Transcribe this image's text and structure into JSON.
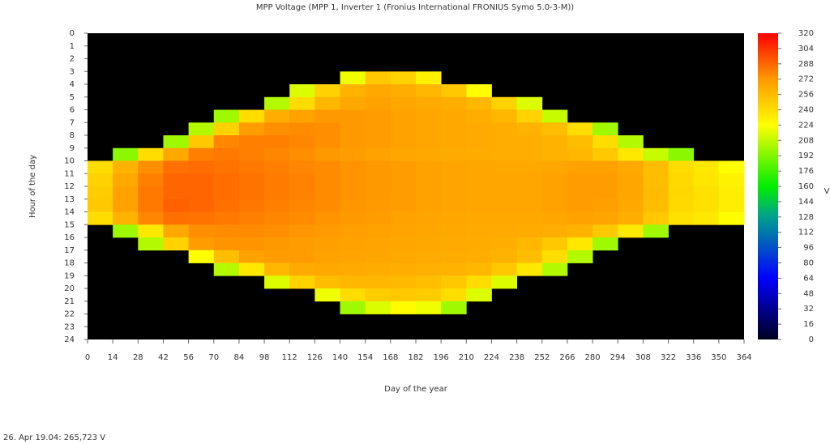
{
  "chart_data": {
    "type": "heatmap",
    "title": "MPP Voltage (MPP 1, Inverter 1 (Fronius International FRONIUS Symo 5.0-3-M))",
    "x_label": "Day of the year",
    "y_label": "Hour of the day",
    "colorbar_label": "V",
    "status": "26. Apr 19.04: 265,723 V",
    "xlim": [
      0,
      364
    ],
    "ylim": [
      0,
      24
    ],
    "xbins": [
      0,
      14,
      28,
      42,
      56,
      70,
      84,
      98,
      112,
      126,
      140,
      154,
      168,
      182,
      196,
      210,
      224,
      238,
      252,
      266,
      280,
      294,
      308,
      322,
      336,
      350,
      364
    ],
    "ybins": [
      0,
      1,
      2,
      3,
      4,
      5,
      6,
      7,
      8,
      9,
      10,
      11,
      12,
      13,
      14,
      15,
      16,
      17,
      18,
      19,
      20,
      21,
      22,
      23,
      24
    ],
    "xticks": [
      0,
      14,
      28,
      42,
      56,
      70,
      84,
      98,
      112,
      126,
      140,
      154,
      168,
      182,
      196,
      210,
      224,
      238,
      252,
      266,
      280,
      294,
      308,
      322,
      336,
      350,
      364
    ],
    "yticks": [
      0,
      1,
      2,
      3,
      4,
      5,
      6,
      7,
      8,
      9,
      10,
      11,
      12,
      13,
      14,
      15,
      16,
      17,
      18,
      19,
      20,
      21,
      22,
      23,
      24
    ],
    "zlim": [
      0,
      320
    ],
    "zticks": [
      0,
      16,
      32,
      48,
      64,
      80,
      96,
      112,
      128,
      144,
      160,
      176,
      192,
      208,
      224,
      240,
      256,
      272,
      288,
      304,
      320
    ],
    "colorscale": [
      [
        0,
        "#000020"
      ],
      [
        64,
        "#0000ff"
      ],
      [
        128,
        "#00a090"
      ],
      [
        160,
        "#00ee00"
      ],
      [
        224,
        "#ffff00"
      ],
      [
        272,
        "#ff9900"
      ],
      [
        320,
        "#ff0000"
      ]
    ],
    "background": "#000000",
    "z": [
      [
        null,
        null,
        null,
        null,
        null,
        null,
        null,
        null,
        null,
        null,
        null,
        null,
        null,
        null,
        null,
        null,
        null,
        null,
        null,
        null,
        null,
        null,
        null,
        null,
        null,
        null
      ],
      [
        null,
        null,
        null,
        null,
        null,
        null,
        null,
        null,
        null,
        null,
        null,
        null,
        null,
        null,
        null,
        null,
        null,
        null,
        null,
        null,
        null,
        null,
        null,
        null,
        null,
        null
      ],
      [
        null,
        null,
        null,
        null,
        null,
        null,
        null,
        null,
        null,
        null,
        null,
        null,
        null,
        null,
        null,
        null,
        null,
        null,
        null,
        null,
        null,
        null,
        null,
        null,
        null,
        null
      ],
      [
        null,
        null,
        null,
        null,
        null,
        null,
        null,
        null,
        null,
        null,
        220,
        250,
        245,
        230,
        null,
        null,
        null,
        null,
        null,
        null,
        null,
        null,
        null,
        null,
        null,
        null
      ],
      [
        null,
        null,
        null,
        null,
        null,
        null,
        null,
        null,
        215,
        245,
        260,
        265,
        262,
        258,
        250,
        225,
        null,
        null,
        null,
        null,
        null,
        null,
        null,
        null,
        null,
        null
      ],
      [
        null,
        null,
        null,
        null,
        null,
        null,
        null,
        205,
        240,
        258,
        265,
        268,
        266,
        264,
        262,
        258,
        245,
        215,
        null,
        null,
        null,
        null,
        null,
        null,
        null,
        null
      ],
      [
        null,
        null,
        null,
        null,
        null,
        200,
        240,
        262,
        268,
        272,
        272,
        270,
        268,
        266,
        265,
        262,
        258,
        245,
        210,
        null,
        null,
        null,
        null,
        null,
        null,
        null
      ],
      [
        null,
        null,
        null,
        null,
        205,
        245,
        270,
        275,
        276,
        275,
        272,
        270,
        268,
        266,
        265,
        264,
        262,
        260,
        255,
        240,
        200,
        null,
        null,
        null,
        null,
        null
      ],
      [
        null,
        null,
        null,
        200,
        250,
        278,
        280,
        280,
        278,
        275,
        272,
        270,
        268,
        266,
        265,
        264,
        262,
        262,
        260,
        255,
        240,
        205,
        null,
        null,
        null,
        null
      ],
      [
        null,
        195,
        240,
        265,
        280,
        282,
        280,
        278,
        275,
        272,
        270,
        268,
        266,
        265,
        264,
        263,
        262,
        262,
        260,
        258,
        250,
        235,
        210,
        195,
        null,
        null
      ],
      [
        240,
        260,
        275,
        285,
        286,
        284,
        282,
        280,
        278,
        276,
        274,
        272,
        270,
        268,
        267,
        266,
        265,
        265,
        266,
        268,
        268,
        265,
        255,
        240,
        235,
        225
      ],
      [
        245,
        265,
        280,
        288,
        288,
        286,
        284,
        281,
        279,
        276,
        274,
        272,
        270,
        268,
        267,
        266,
        266,
        266,
        268,
        270,
        270,
        266,
        255,
        242,
        236,
        230
      ],
      [
        248,
        268,
        282,
        288,
        288,
        286,
        284,
        281,
        279,
        276,
        274,
        272,
        270,
        268,
        267,
        266,
        266,
        266,
        268,
        270,
        270,
        266,
        256,
        243,
        238,
        232
      ],
      [
        250,
        268,
        282,
        290,
        288,
        285,
        283,
        280,
        278,
        276,
        273,
        271,
        270,
        268,
        267,
        266,
        266,
        266,
        268,
        270,
        269,
        265,
        255,
        242,
        238,
        232
      ],
      [
        240,
        260,
        278,
        285,
        284,
        282,
        280,
        278,
        276,
        274,
        272,
        270,
        268,
        267,
        266,
        265,
        265,
        265,
        266,
        268,
        267,
        262,
        250,
        238,
        235,
        225
      ],
      [
        null,
        200,
        235,
        265,
        275,
        276,
        276,
        275,
        273,
        271,
        269,
        268,
        267,
        266,
        265,
        264,
        264,
        263,
        262,
        260,
        250,
        235,
        200,
        null,
        null,
        null
      ],
      [
        null,
        null,
        205,
        245,
        270,
        274,
        274,
        272,
        270,
        269,
        268,
        267,
        266,
        265,
        264,
        263,
        262,
        258,
        250,
        235,
        200,
        null,
        null,
        null,
        null,
        null
      ],
      [
        null,
        null,
        null,
        null,
        225,
        255,
        268,
        270,
        270,
        268,
        267,
        266,
        265,
        264,
        263,
        262,
        260,
        255,
        240,
        205,
        null,
        null,
        null,
        null,
        null,
        null
      ],
      [
        null,
        null,
        null,
        null,
        null,
        205,
        235,
        258,
        264,
        265,
        264,
        263,
        262,
        261,
        260,
        258,
        250,
        235,
        205,
        null,
        null,
        null,
        null,
        null,
        null,
        null
      ],
      [
        null,
        null,
        null,
        null,
        null,
        null,
        null,
        215,
        245,
        255,
        258,
        258,
        256,
        254,
        250,
        240,
        215,
        null,
        null,
        null,
        null,
        null,
        null,
        null,
        null,
        null
      ],
      [
        null,
        null,
        null,
        null,
        null,
        null,
        null,
        null,
        null,
        220,
        240,
        248,
        250,
        248,
        240,
        215,
        null,
        null,
        null,
        null,
        null,
        null,
        null,
        null,
        null,
        null
      ],
      [
        null,
        null,
        null,
        null,
        null,
        null,
        null,
        null,
        null,
        null,
        200,
        215,
        225,
        220,
        200,
        null,
        null,
        null,
        null,
        null,
        null,
        null,
        null,
        null,
        null,
        null
      ],
      [
        null,
        null,
        null,
        null,
        null,
        null,
        null,
        null,
        null,
        null,
        null,
        null,
        null,
        null,
        null,
        null,
        null,
        null,
        null,
        null,
        null,
        null,
        null,
        null,
        null,
        null
      ],
      [
        null,
        null,
        null,
        null,
        null,
        null,
        null,
        null,
        null,
        null,
        null,
        null,
        null,
        null,
        null,
        null,
        null,
        null,
        null,
        null,
        null,
        null,
        null,
        null,
        null,
        null
      ]
    ]
  }
}
